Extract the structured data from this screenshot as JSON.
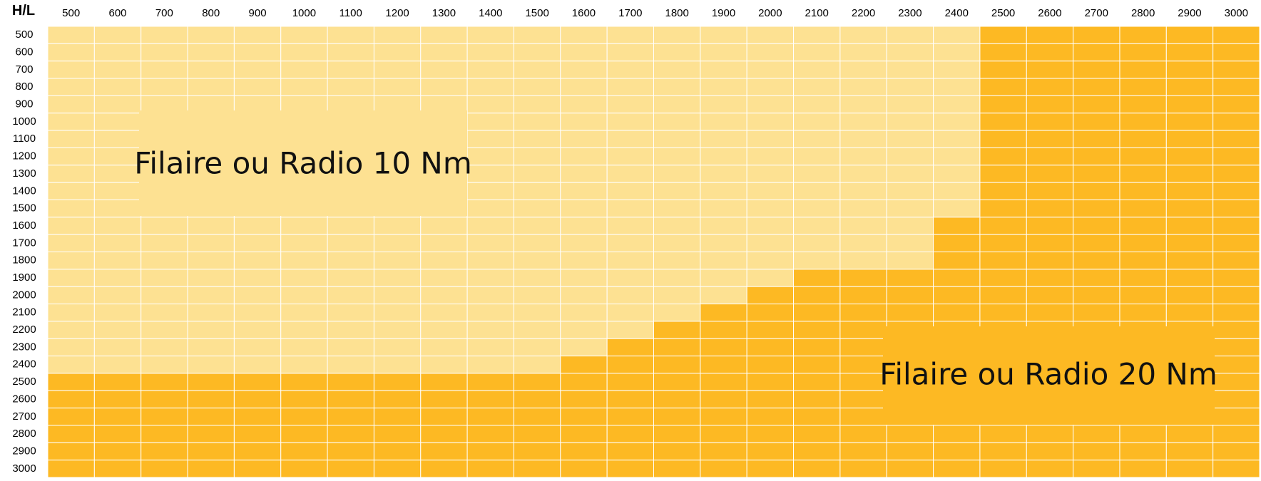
{
  "chart_data": {
    "type": "heatmap",
    "corner_label": "H/L",
    "x_values": [
      500,
      600,
      700,
      800,
      900,
      1000,
      1100,
      1200,
      1300,
      1400,
      1500,
      1600,
      1700,
      1800,
      1900,
      2000,
      2100,
      2200,
      2300,
      2400,
      2500,
      2600,
      2700,
      2800,
      2900,
      3000
    ],
    "y_values": [
      500,
      600,
      700,
      800,
      900,
      1000,
      1100,
      1200,
      1300,
      1400,
      1500,
      1600,
      1700,
      1800,
      1900,
      2000,
      2100,
      2200,
      2300,
      2400,
      2500,
      2600,
      2700,
      2800,
      2900,
      3000
    ],
    "categories": [
      {
        "id": "10nm",
        "label": "Filaire ou Radio 10 Nm",
        "color": "#FDE192"
      },
      {
        "id": "20nm",
        "label": "Filaire ou Radio 20 Nm",
        "color": "#FDB923"
      }
    ],
    "boundary_rule": "For each width L (column), cells with height H up to max_height_10nm are 10 Nm; taller cells are 20 Nm.",
    "max_height_10nm": [
      2400,
      2400,
      2400,
      2400,
      2400,
      2400,
      2400,
      2400,
      2400,
      2400,
      2400,
      2300,
      2200,
      2100,
      2000,
      1900,
      1800,
      1800,
      1800,
      1500,
      0,
      0,
      0,
      0,
      0,
      0
    ],
    "grid_line_color": "#FFFFFF"
  }
}
